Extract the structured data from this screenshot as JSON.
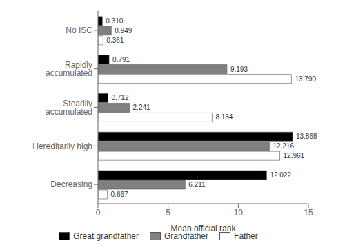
{
  "chart_data": {
    "type": "bar",
    "orientation": "horizontal",
    "categories": [
      "No ISC",
      "Rapidly accumulated",
      "Steadily accumulated",
      "Hereditarily high",
      "Decreasing"
    ],
    "series": [
      {
        "name": "Great grandfather",
        "color": "#000000",
        "values": [
          0.31,
          0.791,
          0.712,
          13.868,
          12.022
        ],
        "value_labels": [
          "0.310",
          "0.791",
          "0.712",
          "13.868",
          "12.022"
        ]
      },
      {
        "name": "Grandfather",
        "color": "#808080",
        "values": [
          0.949,
          9.193,
          2.241,
          12.216,
          6.211
        ],
        "value_labels": [
          "0.949",
          "9.193",
          "2.241",
          "12.216",
          "6.211"
        ]
      },
      {
        "name": "Father",
        "color": "#ffffff",
        "values": [
          0.361,
          13.79,
          8.134,
          12.961,
          0.667
        ],
        "value_labels": [
          "0.361",
          "13.790",
          "8.134",
          "12.961",
          "0.667"
        ]
      }
    ],
    "xlabel": "Mean official rank",
    "xlim": [
      0,
      15
    ],
    "xticks": [
      0,
      5,
      10,
      15
    ],
    "data_labels": true,
    "legend": "bottom",
    "grid": false
  }
}
